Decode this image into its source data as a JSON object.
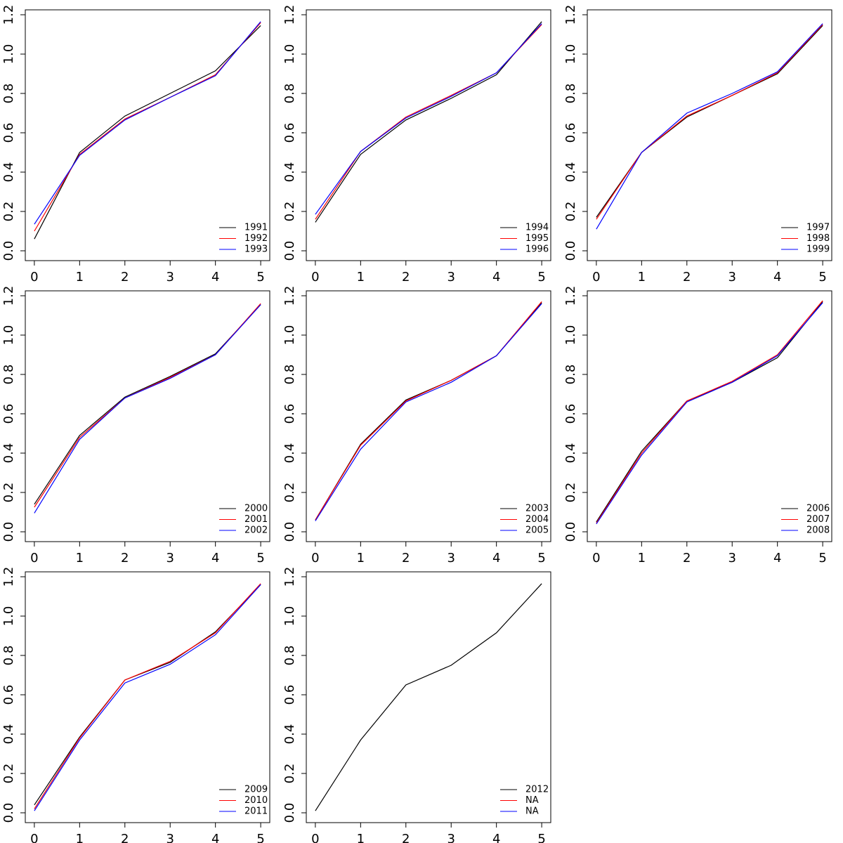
{
  "chart_data": [
    {
      "type": "line",
      "x": [
        0,
        1,
        2,
        3,
        4,
        5
      ],
      "legend": "bottomright",
      "xlim": [
        -0.2,
        5.2
      ],
      "ylim": [
        -0.05,
        1.225
      ],
      "xticks": [
        0,
        1,
        2,
        3,
        4,
        5
      ],
      "yticks": [
        {
          "value": 0,
          "label": "0.0"
        },
        0.2,
        0.4,
        0.6,
        0.8,
        {
          "value": 1,
          "label": "1.0"
        },
        1.2
      ],
      "series": [
        {
          "name": "1991",
          "color": "#000000",
          "values": [
            0.06,
            0.5,
            0.685,
            0.8,
            0.915,
            1.145
          ]
        },
        {
          "name": "1992",
          "color": "#ff0000",
          "values": [
            0.1,
            0.49,
            0.67,
            0.78,
            0.895,
            1.16
          ]
        },
        {
          "name": "1993",
          "color": "#0000ff",
          "values": [
            0.135,
            0.485,
            0.665,
            0.78,
            0.89,
            1.165
          ]
        }
      ]
    },
    {
      "type": "line",
      "x": [
        0,
        1,
        2,
        3,
        4,
        5
      ],
      "legend": "bottomright",
      "xlim": [
        -0.2,
        5.2
      ],
      "ylim": [
        -0.05,
        1.225
      ],
      "xticks": [
        0,
        1,
        2,
        3,
        4,
        5
      ],
      "yticks": [
        {
          "value": 0,
          "label": "0.0"
        },
        0.2,
        0.4,
        0.6,
        0.8,
        {
          "value": 1,
          "label": "1.0"
        },
        1.2
      ],
      "series": [
        {
          "name": "1994",
          "color": "#000000",
          "values": [
            0.145,
            0.49,
            0.665,
            0.775,
            0.895,
            1.165
          ]
        },
        {
          "name": "1995",
          "color": "#ff0000",
          "values": [
            0.16,
            0.505,
            0.68,
            0.79,
            0.905,
            1.15
          ]
        },
        {
          "name": "1996",
          "color": "#0000ff",
          "values": [
            0.185,
            0.505,
            0.675,
            0.785,
            0.905,
            1.155
          ]
        }
      ]
    },
    {
      "type": "line",
      "x": [
        0,
        1,
        2,
        3,
        4,
        5
      ],
      "legend": "bottomright",
      "xlim": [
        -0.2,
        5.2
      ],
      "ylim": [
        -0.05,
        1.225
      ],
      "xticks": [
        0,
        1,
        2,
        3,
        4,
        5
      ],
      "yticks": [
        {
          "value": 0,
          "label": "0.0"
        },
        0.2,
        0.4,
        0.6,
        0.8,
        {
          "value": 1,
          "label": "1.0"
        },
        1.2
      ],
      "series": [
        {
          "name": "1997",
          "color": "#000000",
          "values": [
            0.17,
            0.5,
            0.68,
            0.79,
            0.9,
            1.145
          ]
        },
        {
          "name": "1998",
          "color": "#ff0000",
          "values": [
            0.16,
            0.5,
            0.685,
            0.79,
            0.905,
            1.15
          ]
        },
        {
          "name": "1999",
          "color": "#0000ff",
          "values": [
            0.11,
            0.5,
            0.7,
            0.8,
            0.91,
            1.155
          ]
        }
      ]
    },
    {
      "type": "line",
      "x": [
        0,
        1,
        2,
        3,
        4,
        5
      ],
      "legend": "bottomright",
      "xlim": [
        -0.2,
        5.2
      ],
      "ylim": [
        -0.05,
        1.225
      ],
      "xticks": [
        0,
        1,
        2,
        3,
        4,
        5
      ],
      "yticks": [
        {
          "value": 0,
          "label": "0.0"
        },
        0.2,
        0.4,
        0.6,
        0.8,
        {
          "value": 1,
          "label": "1.0"
        },
        1.2
      ],
      "series": [
        {
          "name": "2000",
          "color": "#000000",
          "values": [
            0.14,
            0.49,
            0.685,
            0.79,
            0.905,
            1.155
          ]
        },
        {
          "name": "2001",
          "color": "#ff0000",
          "values": [
            0.125,
            0.48,
            0.68,
            0.785,
            0.9,
            1.16
          ]
        },
        {
          "name": "2002",
          "color": "#0000ff",
          "values": [
            0.095,
            0.47,
            0.68,
            0.78,
            0.9,
            1.155
          ]
        }
      ]
    },
    {
      "type": "line",
      "x": [
        0,
        1,
        2,
        3,
        4,
        5
      ],
      "legend": "bottomright",
      "xlim": [
        -0.2,
        5.2
      ],
      "ylim": [
        -0.05,
        1.225
      ],
      "xticks": [
        0,
        1,
        2,
        3,
        4,
        5
      ],
      "yticks": [
        {
          "value": 0,
          "label": "0.0"
        },
        0.2,
        0.4,
        0.6,
        0.8,
        {
          "value": 1,
          "label": "1.0"
        },
        1.2
      ],
      "series": [
        {
          "name": "2003",
          "color": "#000000",
          "values": [
            0.06,
            0.445,
            0.67,
            0.77,
            0.895,
            1.165
          ]
        },
        {
          "name": "2004",
          "color": "#ff0000",
          "values": [
            0.06,
            0.44,
            0.665,
            0.77,
            0.895,
            1.17
          ]
        },
        {
          "name": "2005",
          "color": "#0000ff",
          "values": [
            0.055,
            0.42,
            0.66,
            0.76,
            0.895,
            1.16
          ]
        }
      ]
    },
    {
      "type": "line",
      "x": [
        0,
        1,
        2,
        3,
        4,
        5
      ],
      "legend": "bottomright",
      "xlim": [
        -0.2,
        5.2
      ],
      "ylim": [
        -0.05,
        1.225
      ],
      "xticks": [
        0,
        1,
        2,
        3,
        4,
        5
      ],
      "yticks": [
        {
          "value": 0,
          "label": "0.0"
        },
        0.2,
        0.4,
        0.6,
        0.8,
        {
          "value": 1,
          "label": "1.0"
        },
        1.2
      ],
      "series": [
        {
          "name": "2006",
          "color": "#000000",
          "values": [
            0.05,
            0.41,
            0.665,
            0.76,
            0.885,
            1.17
          ]
        },
        {
          "name": "2007",
          "color": "#ff0000",
          "values": [
            0.045,
            0.4,
            0.665,
            0.765,
            0.9,
            1.175
          ]
        },
        {
          "name": "2008",
          "color": "#0000ff",
          "values": [
            0.04,
            0.39,
            0.66,
            0.76,
            0.895,
            1.165
          ]
        }
      ]
    },
    {
      "type": "line",
      "x": [
        0,
        1,
        2,
        3,
        4,
        5
      ],
      "legend": "bottomright",
      "xlim": [
        -0.2,
        5.2
      ],
      "ylim": [
        -0.05,
        1.225
      ],
      "xticks": [
        0,
        1,
        2,
        3,
        4,
        5
      ],
      "yticks": [
        {
          "value": 0,
          "label": "0.0"
        },
        0.2,
        0.4,
        0.6,
        0.8,
        {
          "value": 1,
          "label": "1.0"
        },
        1.2
      ],
      "series": [
        {
          "name": "2009",
          "color": "#000000",
          "values": [
            0.04,
            0.385,
            0.675,
            0.765,
            0.92,
            1.16
          ]
        },
        {
          "name": "2010",
          "color": "#ff0000",
          "values": [
            0.02,
            0.38,
            0.675,
            0.77,
            0.915,
            1.165
          ]
        },
        {
          "name": "2011",
          "color": "#0000ff",
          "values": [
            0.01,
            0.37,
            0.66,
            0.755,
            0.905,
            1.16
          ]
        }
      ]
    },
    {
      "type": "line",
      "x": [
        0,
        1,
        2,
        3,
        4,
        5
      ],
      "legend": "bottomright",
      "xlim": [
        -0.2,
        5.2
      ],
      "ylim": [
        -0.05,
        1.225
      ],
      "xticks": [
        0,
        1,
        2,
        3,
        4,
        5
      ],
      "yticks": [
        {
          "value": 0,
          "label": "0.0"
        },
        0.2,
        0.4,
        0.6,
        0.8,
        {
          "value": 1,
          "label": "1.0"
        },
        1.2
      ],
      "series": [
        {
          "name": "2012",
          "color": "#000000",
          "values": [
            0.01,
            0.37,
            0.65,
            0.75,
            0.915,
            1.165
          ]
        },
        {
          "name": "NA",
          "color": "#ff0000",
          "values": [
            null,
            null,
            null,
            null,
            null,
            null
          ]
        },
        {
          "name": "NA",
          "color": "#0000ff",
          "values": [
            null,
            null,
            null,
            null,
            null,
            null
          ]
        }
      ]
    }
  ]
}
